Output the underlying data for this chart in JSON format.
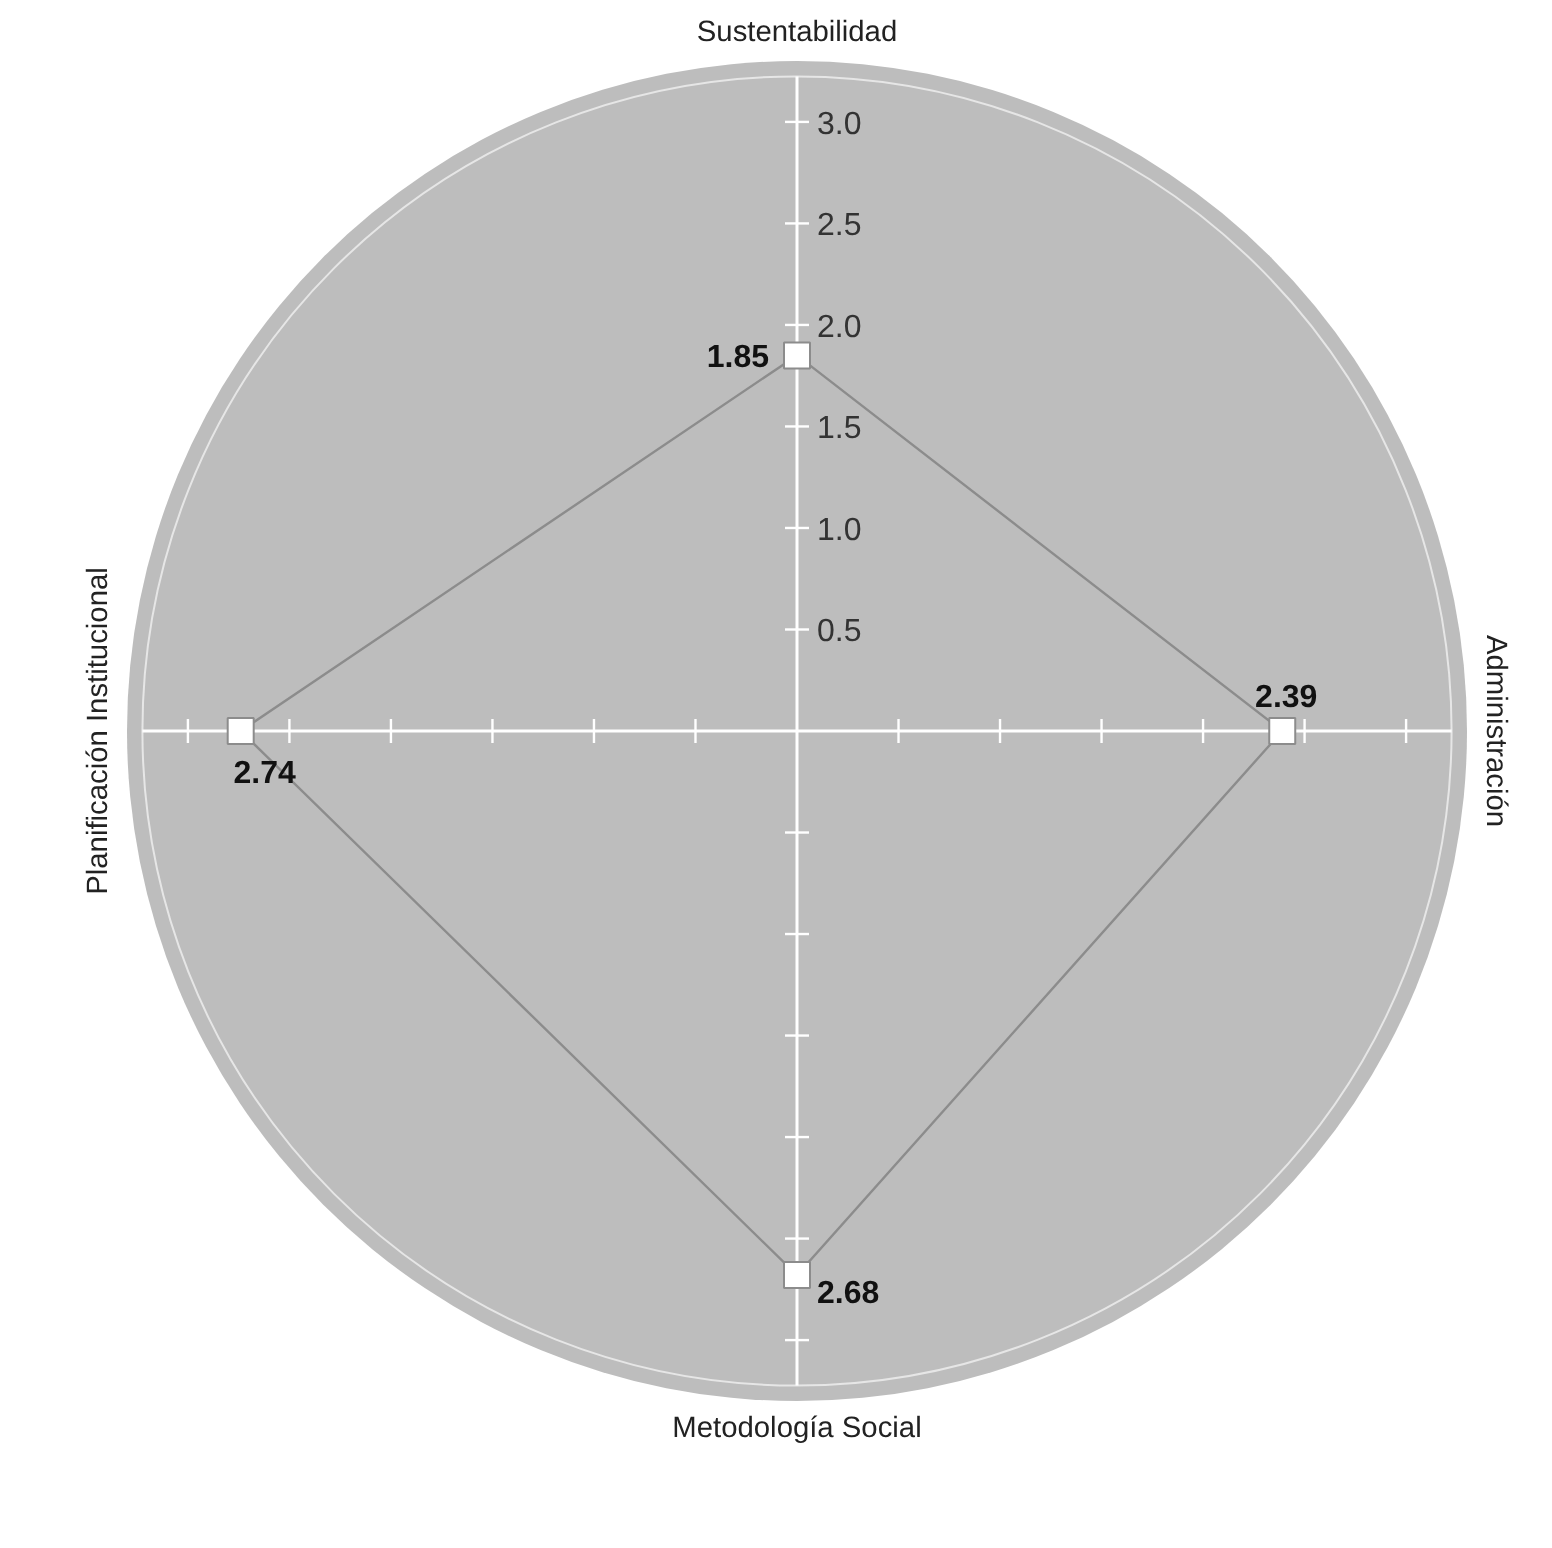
{
  "chart_data": {
    "type": "radar",
    "categories": [
      "Sustentabilidad",
      "Administración",
      "Metodología Social",
      "Planificación Institucional"
    ],
    "series": [
      {
        "color": "#8c8c8c",
        "values": [
          1.85,
          2.39,
          2.68,
          2.74
        ]
      }
    ],
    "ylim": [
      0,
      3.3
    ],
    "yticks": [
      {
        "value": 0.5,
        "label": "0.5"
      },
      {
        "value": 1.0,
        "label": "1.0"
      },
      {
        "value": 1.5,
        "label": "1.5"
      },
      {
        "value": 2.0,
        "label": "2.0"
      },
      {
        "value": 2.5,
        "label": "2.5"
      },
      {
        "value": 3.0,
        "label": "3.0"
      }
    ],
    "data_labels": true,
    "marker": "square",
    "line_style": "solid"
  }
}
